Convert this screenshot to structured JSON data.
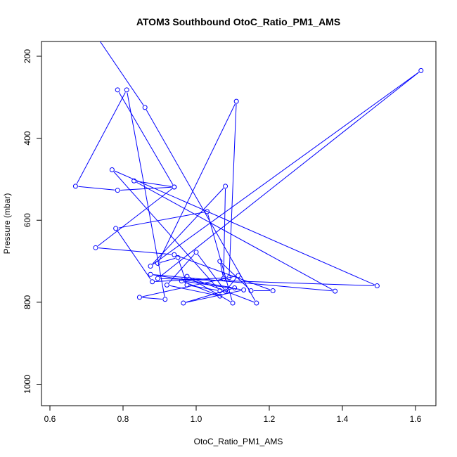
{
  "chart_data": {
    "type": "scatter",
    "title": "ATOM3 Southbound OtoC_Ratio_PM1_AMS",
    "xlabel": "OtoC_Ratio_PM1_AMS",
    "ylabel": "Pressure (mbar)",
    "xlim": [
      0.6,
      1.63
    ],
    "ylim": [
      1050,
      165
    ],
    "y_reversed": true,
    "xticks": [
      0.6,
      0.8,
      1.0,
      1.2,
      1.4,
      1.6
    ],
    "xtick_labels": [
      "0.6",
      "0.8",
      "1.0",
      "1.2",
      "1.4",
      "1.6"
    ],
    "yticks": [
      200,
      400,
      600,
      800,
      1000
    ],
    "ytick_labels": [
      "200",
      "400",
      "600",
      "800",
      "1000"
    ],
    "grid": false,
    "legend": "none",
    "series_color": "#0000ff",
    "style": "lines+points",
    "x": [
      0.7,
      0.86,
      1.165,
      0.975,
      1.1,
      1.03,
      0.78,
      0.88,
      1.09,
      1.11,
      0.895,
      0.95,
      0.975,
      1.065,
      0.77,
      1.495,
      0.895,
      1.615,
      0.875,
      1.08,
      1.075,
      1.065,
      1.15,
      1.21,
      0.94,
      0.725,
      0.94,
      0.785,
      0.67,
      0.81,
      0.915,
      0.845,
      1.115,
      1.08,
      1.0,
      0.92,
      1.065,
      0.96,
      1.13,
      0.965,
      1.105,
      0.875,
      1.38,
      0.83,
      0.94,
      0.785
    ],
    "y": [
      115,
      325,
      802,
      737,
      802,
      579,
      620,
      750,
      740,
      310,
      705,
      691,
      758,
      772,
      477,
      760,
      742,
      235,
      712,
      517,
      742,
      700,
      772,
      772,
      684,
      667,
      519,
      527,
      517,
      282,
      793,
      788,
      735,
      773,
      678,
      758,
      785,
      748,
      770,
      802,
      765,
      732,
      773,
      504,
      519,
      282
    ],
    "lines_to_offscreen_start": true
  }
}
